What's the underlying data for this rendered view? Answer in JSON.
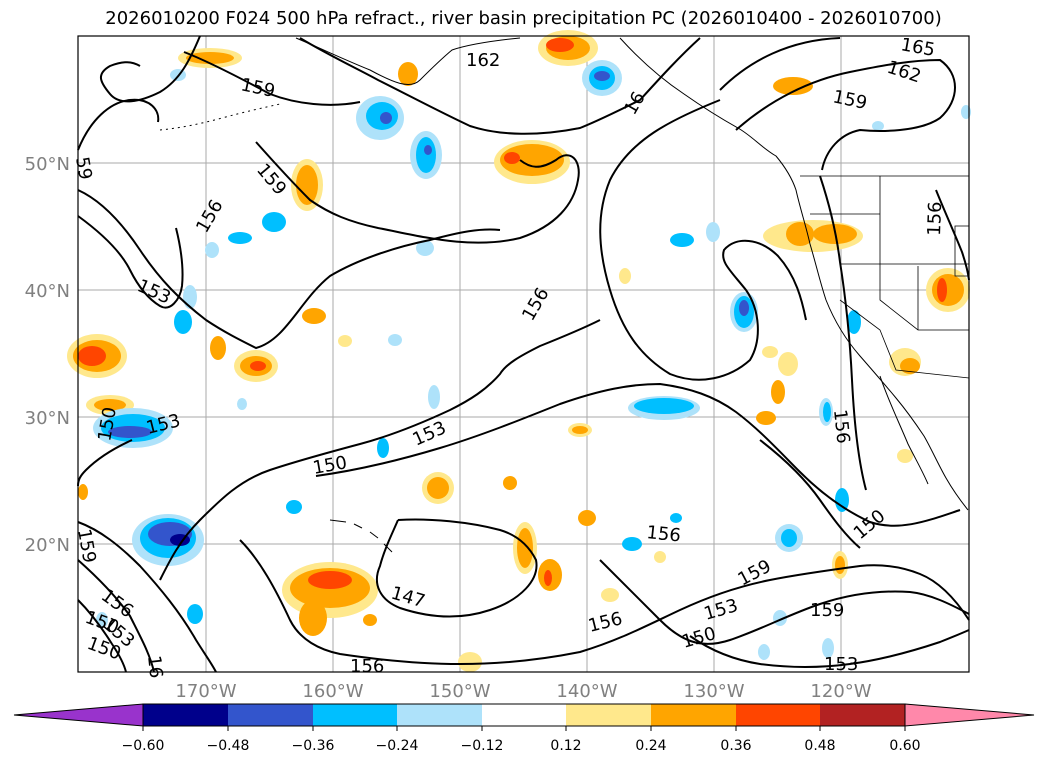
{
  "title": "2026010200 F024 500 hPa refract., river basin precipitation PC (2026010400 - 2026010700)",
  "lat_labels": [
    "50°N",
    "40°N",
    "30°N",
    "20°N"
  ],
  "lon_labels": [
    "170°W",
    "160°W",
    "150°W",
    "140°W",
    "130°W",
    "120°W"
  ],
  "contour_labels": [
    "162",
    "165",
    "162",
    "159",
    "159",
    "159",
    "16",
    "59",
    "156",
    "156",
    "153",
    "153",
    "153",
    "150",
    "150",
    "150",
    "147",
    "156",
    "156",
    "159",
    "159",
    "153",
    "150",
    "153",
    "156",
    "156",
    "150",
    "159",
    "156",
    "153",
    "150",
    "16"
  ],
  "colorbar": {
    "ticks": [
      "−0.60",
      "−0.48",
      "−0.36",
      "−0.24",
      "−0.12",
      "0.12",
      "0.24",
      "0.36",
      "0.48",
      "0.60"
    ],
    "colors": [
      "#9933cc",
      "#00008b",
      "#3355cc",
      "#00bfff",
      "#aee2fa",
      "#ffffff",
      "#ffe88c",
      "#ffa500",
      "#ff4500",
      "#b22222",
      "#ff88aa"
    ]
  },
  "colors": {
    "contour": "#000000",
    "grid": "#aaaaaa",
    "axis_label": "#808080"
  }
}
